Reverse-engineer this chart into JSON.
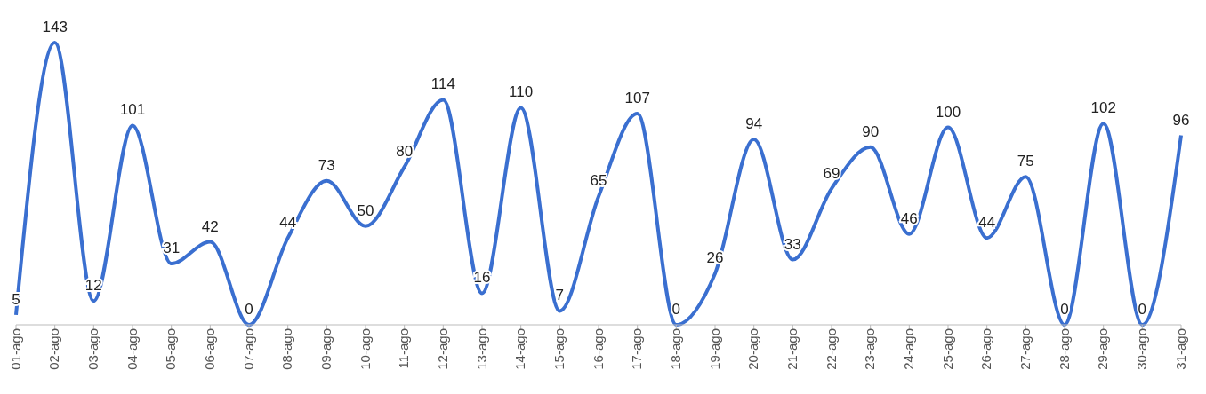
{
  "chart_data": {
    "type": "line",
    "categories": [
      "01-ago",
      "02-ago",
      "03-ago",
      "04-ago",
      "05-ago",
      "06-ago",
      "07-ago",
      "08-ago",
      "09-ago",
      "10-ago",
      "11-ago",
      "12-ago",
      "13-ago",
      "14-ago",
      "15-ago",
      "16-ago",
      "17-ago",
      "18-ago",
      "19-ago",
      "20-ago",
      "21-ago",
      "22-ago",
      "23-ago",
      "24-ago",
      "25-ago",
      "26-ago",
      "27-ago",
      "28-ago",
      "29-ago",
      "30-ago",
      "31-ago"
    ],
    "series": [
      {
        "color": "#3a6fd0",
        "values": [
          5,
          143,
          12,
          101,
          31,
          42,
          0,
          44,
          73,
          50,
          80,
          114,
          16,
          110,
          7,
          65,
          107,
          0,
          26,
          94,
          33,
          69,
          90,
          46,
          100,
          44,
          75,
          0,
          102,
          0,
          96
        ]
      }
    ],
    "data_labels": true,
    "grid": false
  }
}
